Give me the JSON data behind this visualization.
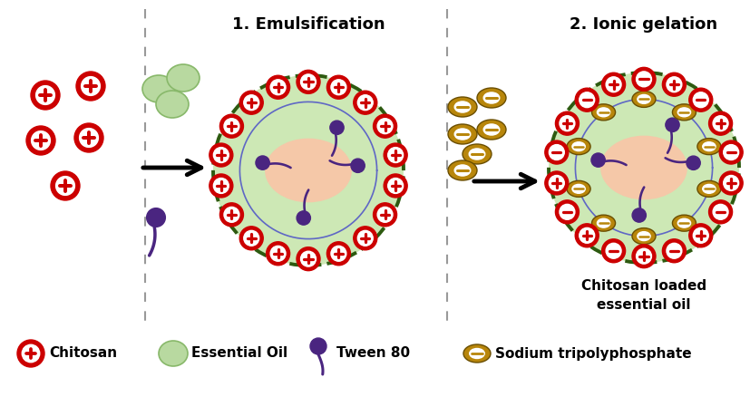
{
  "title1": "1. Emulsification",
  "title2": "2. Ionic gelation",
  "label_final": "Chitosan loaded\nessential oil",
  "bg_color": "#ffffff",
  "chitosan_red": "#cc0000",
  "essential_oil_green": "#b8d9a0",
  "essential_oil_border": "#88b86a",
  "tween_purple": "#4a2580",
  "tpp_gold": "#b8860b",
  "inner_core_color": "#f5c8a8",
  "outer_shell_green": "#cde8b5",
  "dashed_border": "#2d5a10",
  "sep_color": "#999999",
  "title_fontsize": 13,
  "legend_fontsize": 11,
  "label_fontsize": 10
}
